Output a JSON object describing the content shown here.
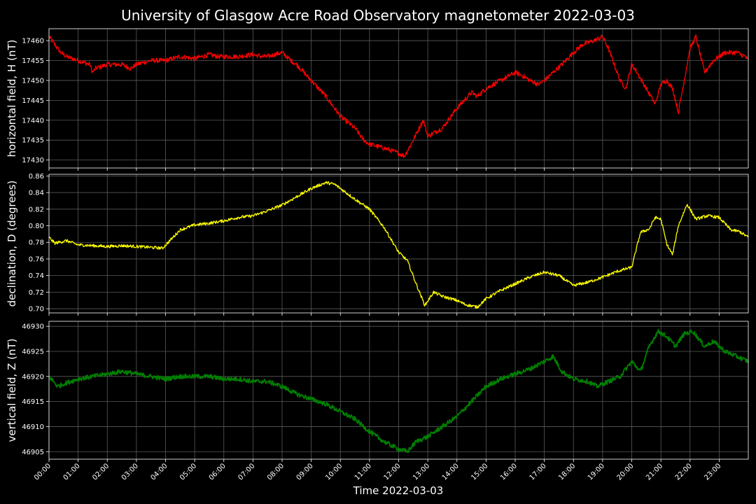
{
  "chart_data": {
    "type": "line",
    "title": "University of Glasgow Acre Road Observatory magnetometer 2022-03-03",
    "xlabel": "Time 2022-03-03",
    "x_unit": "hours",
    "xlim": [
      0,
      24
    ],
    "x_tick_labels": [
      "00:00",
      "01:00",
      "02:00",
      "03:00",
      "04:00",
      "05:00",
      "06:00",
      "07:00",
      "08:00",
      "09:00",
      "10:00",
      "11:00",
      "12:00",
      "13:00",
      "14:00",
      "15:00",
      "16:00",
      "17:00",
      "18:00",
      "19:00",
      "20:00",
      "21:00",
      "22:00",
      "23:00"
    ],
    "grid": true,
    "panels": [
      {
        "name": "H",
        "ylabel": "horizontal field, H (nT)",
        "color": "#ff0000",
        "ylim": [
          17428,
          17463
        ],
        "yticks": [
          17430,
          17435,
          17440,
          17445,
          17450,
          17455,
          17460
        ],
        "noise": 0.6,
        "series": {
          "x": [
            0,
            0.2,
            0.4,
            0.6,
            1.0,
            1.4,
            1.5,
            1.6,
            2.0,
            2.5,
            2.8,
            3.0,
            3.5,
            4.0,
            4.5,
            5.0,
            5.5,
            5.8,
            6.0,
            6.5,
            7.0,
            7.3,
            7.5,
            8.0,
            8.3,
            8.5,
            9.0,
            9.5,
            10.0,
            10.5,
            10.8,
            11.0,
            11.5,
            11.9,
            12.2,
            12.5,
            12.7,
            12.85,
            13.0,
            13.5,
            14.0,
            14.5,
            14.7,
            15.0,
            15.5,
            16.0,
            16.3,
            16.5,
            16.8,
            17.0,
            17.3,
            17.6,
            18.0,
            18.3,
            18.7,
            19.0,
            19.2,
            19.4,
            19.6,
            19.8,
            20.0,
            20.1,
            20.5,
            20.8,
            21.0,
            21.2,
            21.4,
            21.6,
            21.8,
            22.0,
            22.2,
            22.5,
            22.8,
            23.2,
            23.6,
            23.9,
            24.0
          ],
          "y": [
            17461,
            17459,
            17457,
            17456,
            17455,
            17454,
            17452,
            17453,
            17454,
            17454,
            17453,
            17454,
            17455,
            17455,
            17456,
            17455.5,
            17456.5,
            17456,
            17456,
            17456,
            17456.5,
            17456,
            17456,
            17457,
            17455,
            17454,
            17450,
            17446,
            17441,
            17438,
            17435,
            17434,
            17433,
            17432,
            17431,
            17435,
            17438,
            17440,
            17436,
            17438,
            17443,
            17447,
            17446,
            17448,
            17450,
            17452,
            17451,
            17450,
            17449,
            17450,
            17452,
            17454,
            17457,
            17459,
            17460,
            17461,
            17458,
            17454,
            17450,
            17448,
            17454,
            17453,
            17448,
            17444,
            17449,
            17450,
            17448,
            17442,
            17450,
            17458,
            17461,
            17452,
            17455,
            17457,
            17457,
            17456,
            17455
          ]
        }
      },
      {
        "name": "D",
        "ylabel": "declination, D (degrees)",
        "color": "#ffff00",
        "ylim": [
          0.695,
          0.862
        ],
        "yticks": [
          0.7,
          0.72,
          0.74,
          0.76,
          0.78,
          0.8,
          0.82,
          0.84,
          0.86
        ],
        "noise": 0.0018,
        "series": {
          "x": [
            0,
            0.2,
            0.6,
            1.0,
            1.5,
            2.0,
            2.5,
            3.0,
            3.5,
            3.9,
            4.2,
            4.5,
            5.0,
            5.5,
            6.0,
            6.5,
            7.0,
            7.5,
            8.0,
            8.5,
            9.0,
            9.5,
            9.8,
            10.0,
            10.5,
            11.0,
            11.5,
            12.0,
            12.3,
            12.6,
            12.9,
            13.2,
            13.5,
            14.0,
            14.3,
            14.7,
            15.0,
            15.5,
            16.0,
            16.5,
            17.0,
            17.5,
            18.0,
            18.5,
            19.0,
            19.5,
            20.0,
            20.3,
            20.6,
            20.8,
            21.0,
            21.2,
            21.4,
            21.6,
            21.9,
            22.2,
            22.6,
            23.0,
            23.4,
            23.7,
            24.0
          ],
          "y": [
            0.786,
            0.779,
            0.782,
            0.777,
            0.776,
            0.775,
            0.776,
            0.775,
            0.774,
            0.773,
            0.784,
            0.795,
            0.801,
            0.803,
            0.806,
            0.81,
            0.812,
            0.818,
            0.825,
            0.835,
            0.845,
            0.852,
            0.85,
            0.845,
            0.832,
            0.82,
            0.798,
            0.768,
            0.758,
            0.73,
            0.704,
            0.72,
            0.715,
            0.71,
            0.705,
            0.702,
            0.712,
            0.722,
            0.73,
            0.738,
            0.744,
            0.74,
            0.728,
            0.732,
            0.738,
            0.745,
            0.75,
            0.792,
            0.796,
            0.81,
            0.808,
            0.778,
            0.765,
            0.8,
            0.826,
            0.808,
            0.812,
            0.81,
            0.795,
            0.793,
            0.786
          ]
        }
      },
      {
        "name": "Z",
        "ylabel": "vertical field, Z (nT)",
        "color": "#008000",
        "ylim": [
          46903.5,
          46931
        ],
        "yticks": [
          46905,
          46910,
          46915,
          46920,
          46925,
          46930
        ],
        "noise": 0.45,
        "series": {
          "x": [
            0,
            0.3,
            0.5,
            1.0,
            1.5,
            2.0,
            2.5,
            3.0,
            3.5,
            4.0,
            4.5,
            5.0,
            5.5,
            6.0,
            6.5,
            7.0,
            7.5,
            8.0,
            8.5,
            9.0,
            9.5,
            10.0,
            10.5,
            11.0,
            11.5,
            12.0,
            12.3,
            12.6,
            13.0,
            13.5,
            14.0,
            14.5,
            15.0,
            15.5,
            16.0,
            16.5,
            17.0,
            17.3,
            17.6,
            18.0,
            18.5,
            18.8,
            19.2,
            19.6,
            20.0,
            20.3,
            20.6,
            20.9,
            21.2,
            21.5,
            21.8,
            22.1,
            22.5,
            22.8,
            23.2,
            23.6,
            24.0
          ],
          "y": [
            46920,
            46918,
            46918.5,
            46919.5,
            46920,
            46920.5,
            46921,
            46920.5,
            46920,
            46919.5,
            46920,
            46920,
            46920,
            46919.5,
            46919.5,
            46919,
            46919,
            46918,
            46916.5,
            46915.5,
            46914.5,
            46913,
            46911.5,
            46909,
            46907,
            46905.5,
            46905,
            46907,
            46908,
            46910,
            46912,
            46915,
            46918,
            46919.5,
            46920.5,
            46921.5,
            46923,
            46924,
            46921,
            46919.5,
            46919,
            46918,
            46919,
            46920,
            46923,
            46921,
            46926,
            46929,
            46928,
            46926,
            46928.5,
            46929,
            46926,
            46927,
            46925,
            46924,
            46923
          ]
        }
      }
    ]
  }
}
